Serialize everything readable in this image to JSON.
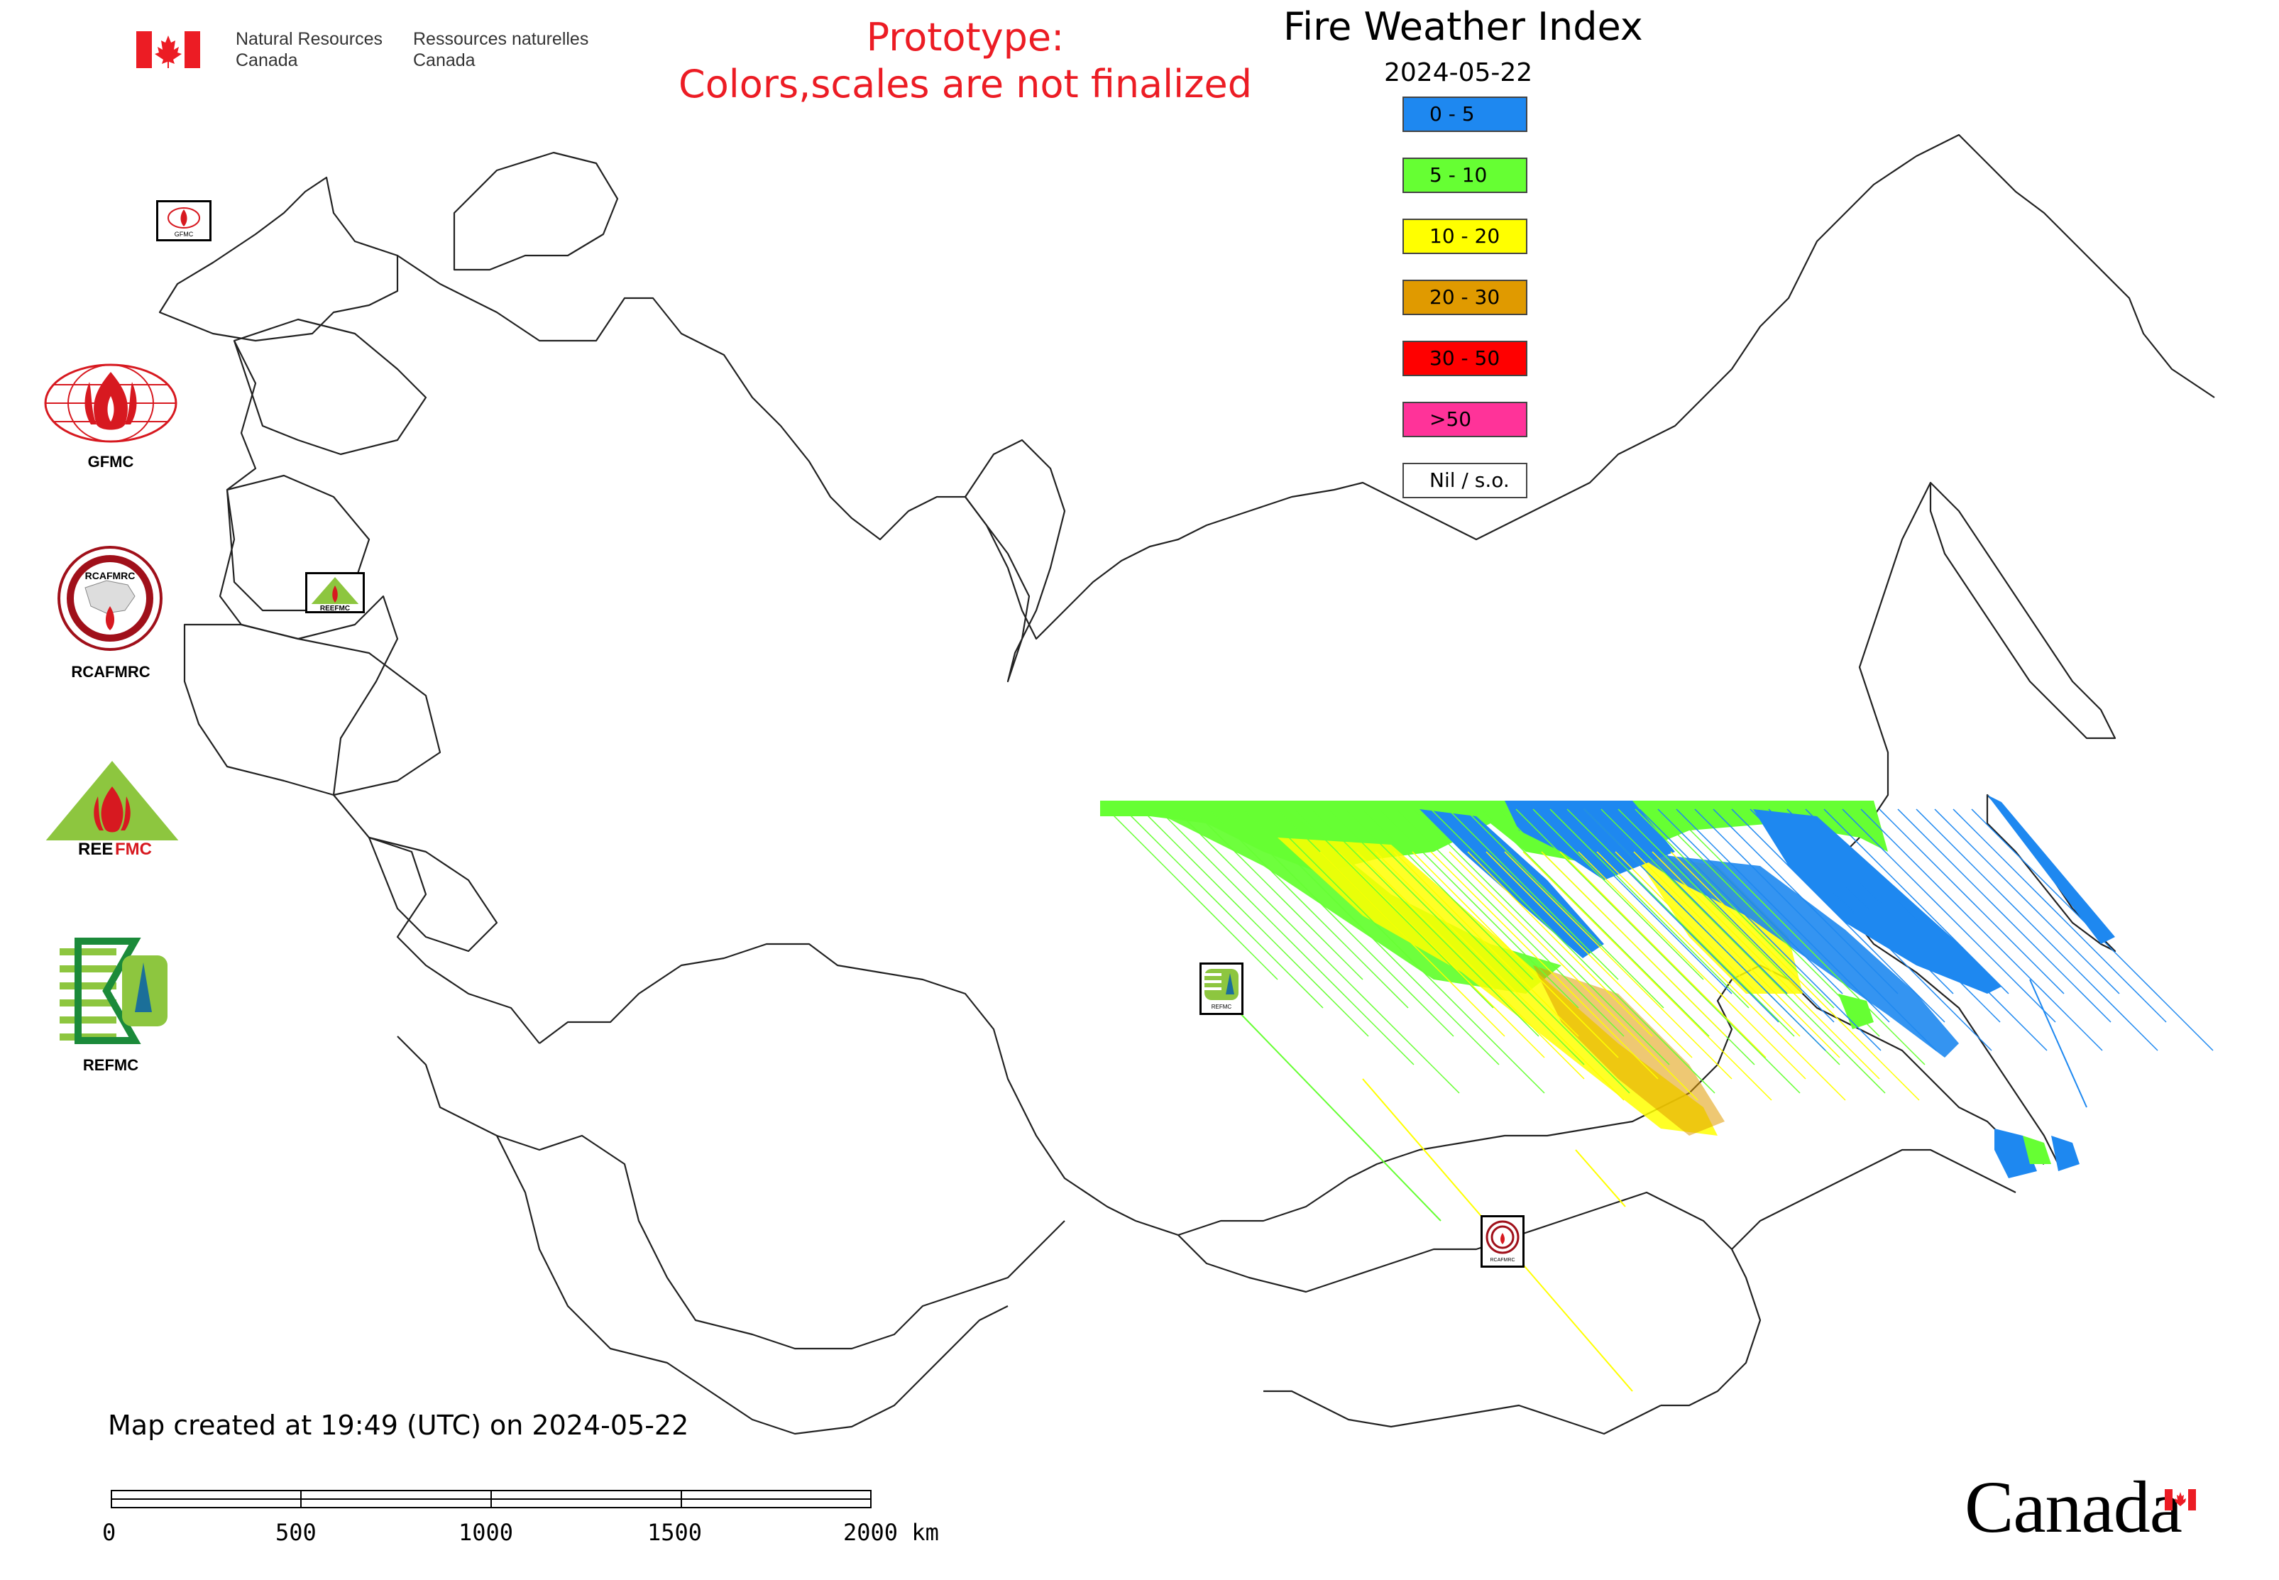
{
  "header": {
    "agency_en_line1": "Natural Resources",
    "agency_en_line2": "Canada",
    "agency_fr_line1": "Ressources naturelles",
    "agency_fr_line2": "Canada",
    "flag_icon": "canada-flag-icon"
  },
  "prototype_notice": {
    "line1": "Prototype:",
    "line2": "Colors,scales are not finalized",
    "color": "#ec1c24"
  },
  "title": "Fire Weather Index",
  "date": "2024-05-22",
  "legend": [
    {
      "label": "0 - 5",
      "color": "#1e88f0"
    },
    {
      "label": "5 - 10",
      "color": "#66ff33"
    },
    {
      "label": "10 - 20",
      "color": "#ffff00"
    },
    {
      "label": "20 - 30",
      "color": "#e09a00"
    },
    {
      "label": "30 - 50",
      "color": "#ff0000"
    },
    {
      "label": ">50",
      "color": "#ff3399"
    },
    {
      "label": "Nil / s.o.",
      "color": "#ffffff"
    }
  ],
  "agency_logos": [
    {
      "label": "GFMC",
      "icon": "gfmc-logo-icon"
    },
    {
      "label": "RCAFMRC",
      "icon": "rcafmrc-logo-icon"
    },
    {
      "label": "",
      "icon": "reefmc-logo-icon"
    },
    {
      "label": "REFMC",
      "icon": "refmc-logo-icon"
    }
  ],
  "map_markers": [
    {
      "icon": "gfmc-marker-icon"
    },
    {
      "icon": "reefmc-marker-icon"
    },
    {
      "icon": "refmc-marker-icon"
    },
    {
      "icon": "rcafmrc-marker-icon"
    }
  ],
  "footer": {
    "created_text": "Map created at 19:49 (UTC) on 2024-05-22",
    "scale_labels": [
      "0",
      "500",
      "1000",
      "1500",
      "2000 km"
    ],
    "wordmark": "Canada"
  }
}
